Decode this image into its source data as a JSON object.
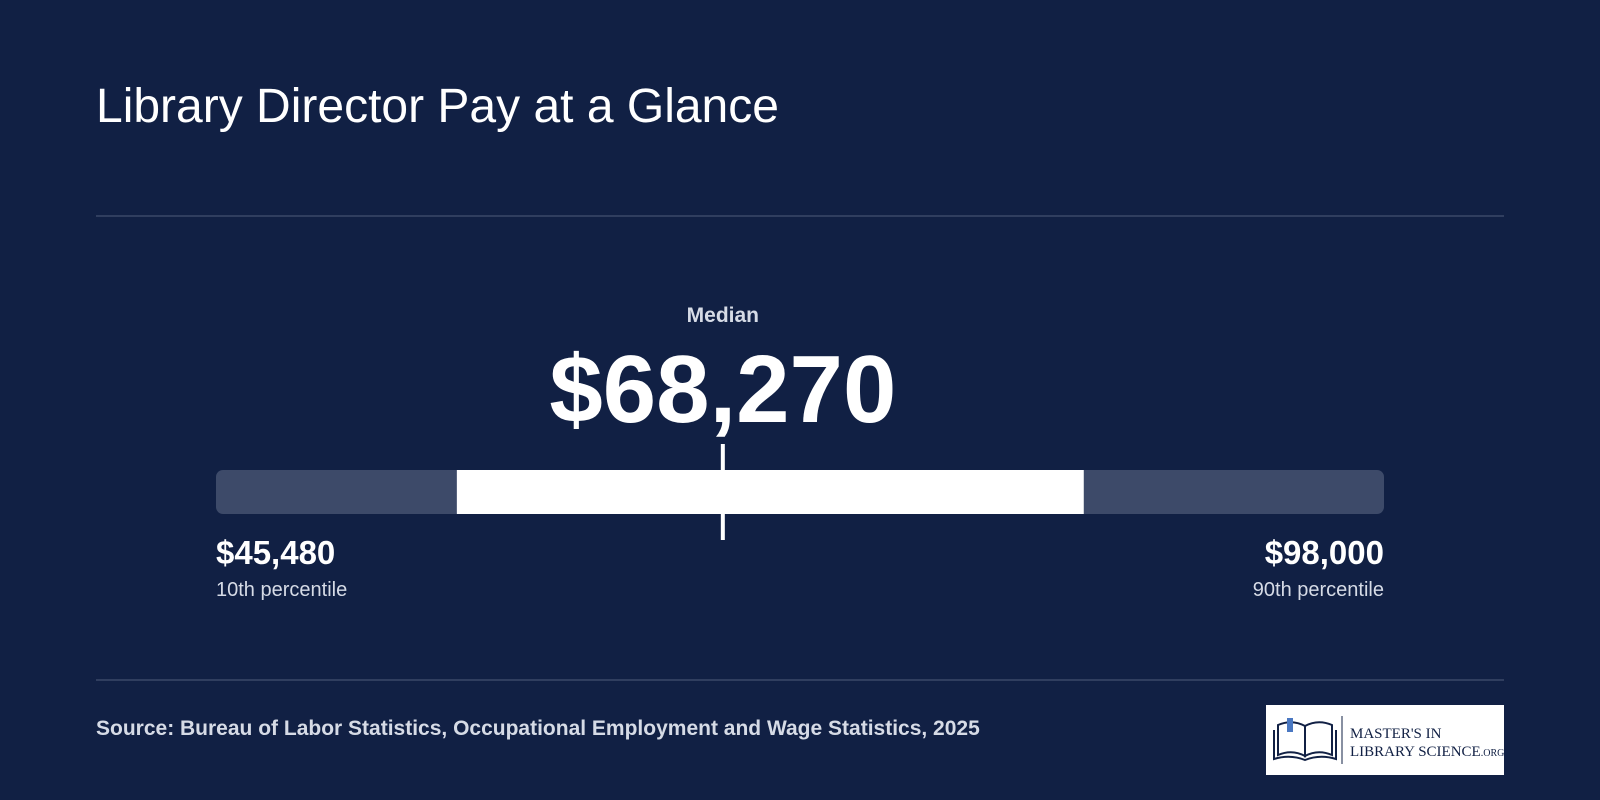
{
  "chart_data": {
    "type": "range",
    "title": "Library Director Pay at a Glance",
    "median_caption": "Median",
    "low": {
      "value": 45480,
      "label": "$45,480",
      "caption": "10th percentile"
    },
    "median": {
      "value": 68270,
      "label": "$68,270"
    },
    "high": {
      "value": 98000,
      "label": "$98,000",
      "caption": "90th percentile"
    },
    "band": [
      56310,
      84500
    ],
    "track_color": "#3d4a69",
    "band_color": "#ffffff",
    "source": "Source: Bureau of Labor Statistics, Occupational Employment and Wage Statistics, 2025"
  },
  "logo": {
    "line1": "MASTER'S IN",
    "line2": "LIBRARY SCIENCE",
    "suffix": ".ORG"
  }
}
